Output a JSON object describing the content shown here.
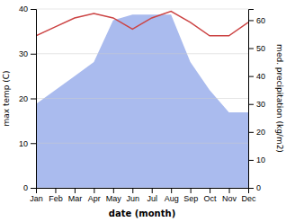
{
  "chart_data": {
    "type": "line",
    "x_label": "date (month)",
    "y_label": "max temp (C)",
    "y2_label": "med. precipitation (kg/m2)",
    "categories": [
      "Jan",
      "Feb",
      "Mar",
      "Apr",
      "May",
      "Jun",
      "Jul",
      "Aug",
      "Sep",
      "Oct",
      "Nov",
      "Dec"
    ],
    "series": [
      {
        "type": "line",
        "color": "#cc4444",
        "values": [
          34,
          36,
          38,
          39,
          38,
          35.5,
          38,
          39.5,
          37,
          34,
          34,
          37
        ]
      },
      {
        "type": "area",
        "axis": "y2",
        "color": "#aabbee",
        "values": [
          30,
          35,
          40,
          45,
          60,
          62,
          62,
          62,
          45,
          35,
          27,
          27
        ]
      }
    ],
    "ylim": [
      0,
      40
    ],
    "yticks": [
      0,
      10,
      20,
      30,
      40
    ],
    "y2lim": [
      0,
      64
    ],
    "y2ticks": [
      0,
      10,
      20,
      30,
      40,
      50,
      60
    ],
    "grid": true
  }
}
